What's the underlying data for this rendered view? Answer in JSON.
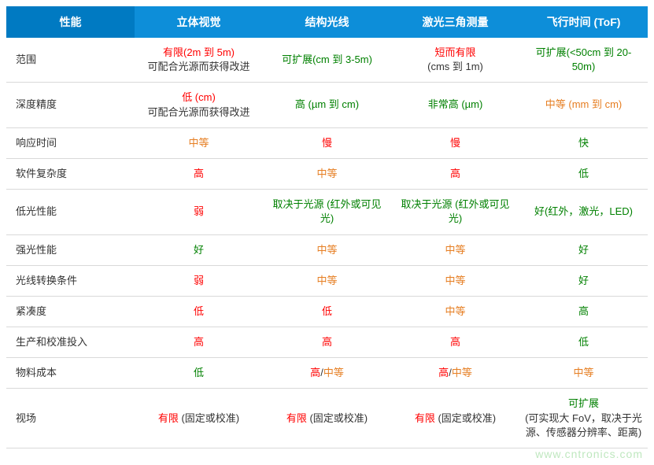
{
  "colors": {
    "header_bg": "#0d8ed9",
    "header_bg_first": "#007ac2",
    "header_fg": "#ffffff",
    "row_border": "#d9d9d9",
    "text": "#333333",
    "red": "#ff0000",
    "green": "#008000",
    "orange": "#e67e22"
  },
  "table": {
    "columns": [
      {
        "key": "perf",
        "label": "性能"
      },
      {
        "key": "stereo",
        "label": "立体视觉"
      },
      {
        "key": "struct",
        "label": "结构光线"
      },
      {
        "key": "laser",
        "label": "激光三角测量"
      },
      {
        "key": "tof",
        "label": "飞行时间 (ToF)"
      }
    ],
    "rows": [
      {
        "label": "范围",
        "cells": [
          [
            {
              "text": "有限(2m 到 5m)",
              "color": "red"
            },
            {
              "text": "可配合光源而获得改进",
              "color": "text"
            }
          ],
          [
            {
              "text": "可扩展(cm 到 3-5m)",
              "color": "green"
            }
          ],
          [
            {
              "text": "短而有限",
              "color": "red"
            },
            {
              "text": "(cms 到 1m)",
              "color": "text"
            }
          ],
          [
            {
              "text": "可扩展(<50cm 到 20-50m)",
              "color": "green"
            }
          ]
        ]
      },
      {
        "label": "深度精度",
        "cells": [
          [
            {
              "text": "低 (cm)",
              "color": "red"
            },
            {
              "text": "可配合光源而获得改进",
              "color": "text"
            }
          ],
          [
            {
              "text": "高 (µm 到 cm)",
              "color": "green"
            }
          ],
          [
            {
              "text": "非常高 (µm)",
              "color": "green"
            }
          ],
          [
            {
              "text": "中等 (mm 到 cm)",
              "color": "orange"
            }
          ]
        ]
      },
      {
        "label": "响应时间",
        "cells": [
          [
            {
              "text": "中等",
              "color": "orange"
            }
          ],
          [
            {
              "text": "慢",
              "color": "red"
            }
          ],
          [
            {
              "text": "慢",
              "color": "red"
            }
          ],
          [
            {
              "text": "快",
              "color": "green"
            }
          ]
        ]
      },
      {
        "label": "软件复杂度",
        "cells": [
          [
            {
              "text": "高",
              "color": "red"
            }
          ],
          [
            {
              "text": "中等",
              "color": "orange"
            }
          ],
          [
            {
              "text": "高",
              "color": "red"
            }
          ],
          [
            {
              "text": "低",
              "color": "green"
            }
          ]
        ]
      },
      {
        "label": "低光性能",
        "cells": [
          [
            {
              "text": "弱",
              "color": "red"
            }
          ],
          [
            {
              "text": "取决于光源 (红外或可见光)",
              "color": "green"
            }
          ],
          [
            {
              "text": "取决于光源 (红外或可见光)",
              "color": "green"
            }
          ],
          [
            {
              "text": "好(红外，激光，LED)",
              "color": "green"
            }
          ]
        ]
      },
      {
        "label": "强光性能",
        "cells": [
          [
            {
              "text": "好",
              "color": "green"
            }
          ],
          [
            {
              "text": "中等",
              "color": "orange"
            }
          ],
          [
            {
              "text": "中等",
              "color": "orange"
            }
          ],
          [
            {
              "text": "好",
              "color": "green"
            }
          ]
        ]
      },
      {
        "label": "光线转换条件",
        "cells": [
          [
            {
              "text": "弱",
              "color": "red"
            }
          ],
          [
            {
              "text": "中等",
              "color": "orange"
            }
          ],
          [
            {
              "text": "中等",
              "color": "orange"
            }
          ],
          [
            {
              "text": "好",
              "color": "green"
            }
          ]
        ]
      },
      {
        "label": "紧凑度",
        "cells": [
          [
            {
              "text": "低",
              "color": "red"
            }
          ],
          [
            {
              "text": "低",
              "color": "red"
            }
          ],
          [
            {
              "text": "中等",
              "color": "orange"
            }
          ],
          [
            {
              "text": "高",
              "color": "green"
            }
          ]
        ]
      },
      {
        "label": "生产和校准投入",
        "cells": [
          [
            {
              "text": "高",
              "color": "red"
            }
          ],
          [
            {
              "text": "高",
              "color": "red"
            }
          ],
          [
            {
              "text": "高",
              "color": "red"
            }
          ],
          [
            {
              "text": "低",
              "color": "green"
            }
          ]
        ]
      },
      {
        "label": "物料成本",
        "cells": [
          [
            {
              "text": "低",
              "color": "green"
            }
          ],
          [
            {
              "text": "高",
              "color": "red"
            },
            {
              "text": "/",
              "color": "text",
              "inline": true
            },
            {
              "text": "中等",
              "color": "orange",
              "inline": true
            }
          ],
          [
            {
              "text": "高",
              "color": "red"
            },
            {
              "text": "/",
              "color": "text",
              "inline": true
            },
            {
              "text": "中等",
              "color": "orange",
              "inline": true
            }
          ],
          [
            {
              "text": "中等",
              "color": "orange"
            }
          ]
        ]
      },
      {
        "label": "视场",
        "cells": [
          [
            {
              "text": "有限",
              "color": "red"
            },
            {
              "text": " (固定或校准)",
              "color": "text",
              "inline": true
            }
          ],
          [
            {
              "text": "有限",
              "color": "red"
            },
            {
              "text": " (固定或校准)",
              "color": "text",
              "inline": true
            }
          ],
          [
            {
              "text": "有限",
              "color": "red"
            },
            {
              "text": " (固定或校准)",
              "color": "text",
              "inline": true
            }
          ],
          [
            {
              "text": "可扩展",
              "color": "green"
            },
            {
              "text": "(可实现大 FoV，取决于光源、传感器分辨率、距离)",
              "color": "text"
            }
          ]
        ]
      }
    ]
  },
  "watermark": "www.cntronics.com"
}
